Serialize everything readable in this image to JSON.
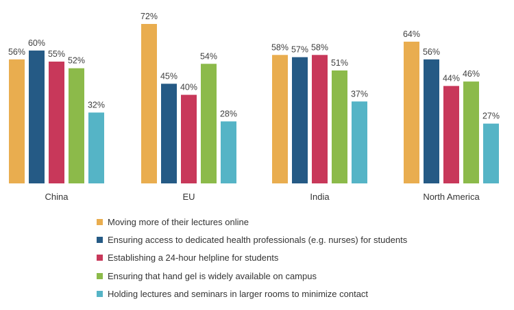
{
  "chart_data": {
    "type": "bar",
    "categories": [
      "China",
      "EU",
      "India",
      "North America"
    ],
    "series": [
      {
        "name": "Moving more of their lectures online",
        "color": "#e9ad4f",
        "values": [
          56,
          72,
          58,
          64
        ],
        "labels": [
          "56%",
          "72%",
          "58%",
          "64%"
        ]
      },
      {
        "name": "Ensuring access to dedicated health professionals (e.g. nurses) for students",
        "color": "#255a85",
        "values": [
          60,
          45,
          57,
          56
        ],
        "labels": [
          "60%",
          "45%",
          "57%",
          "56%"
        ]
      },
      {
        "name": "Establishing a 24-hour helpline for students",
        "color": "#c8385a",
        "values": [
          55,
          40,
          58,
          44
        ],
        "labels": [
          "55%",
          "40%",
          "58%",
          "44%"
        ]
      },
      {
        "name": "Ensuring that hand gel is widely available on campus",
        "color": "#8cba4a",
        "values": [
          52,
          54,
          51,
          46
        ],
        "labels": [
          "52%",
          "54%",
          "51%",
          "46%"
        ]
      },
      {
        "name": "Holding lectures and seminars in larger rooms to minimize contact",
        "color": "#55b4c6",
        "values": [
          32,
          28,
          37,
          27
        ],
        "labels": [
          "32%",
          "28%",
          "37%",
          "27%"
        ]
      }
    ],
    "unit": "%",
    "ylim": [
      0,
      72
    ],
    "grid": false,
    "legend_position": "bottom"
  }
}
